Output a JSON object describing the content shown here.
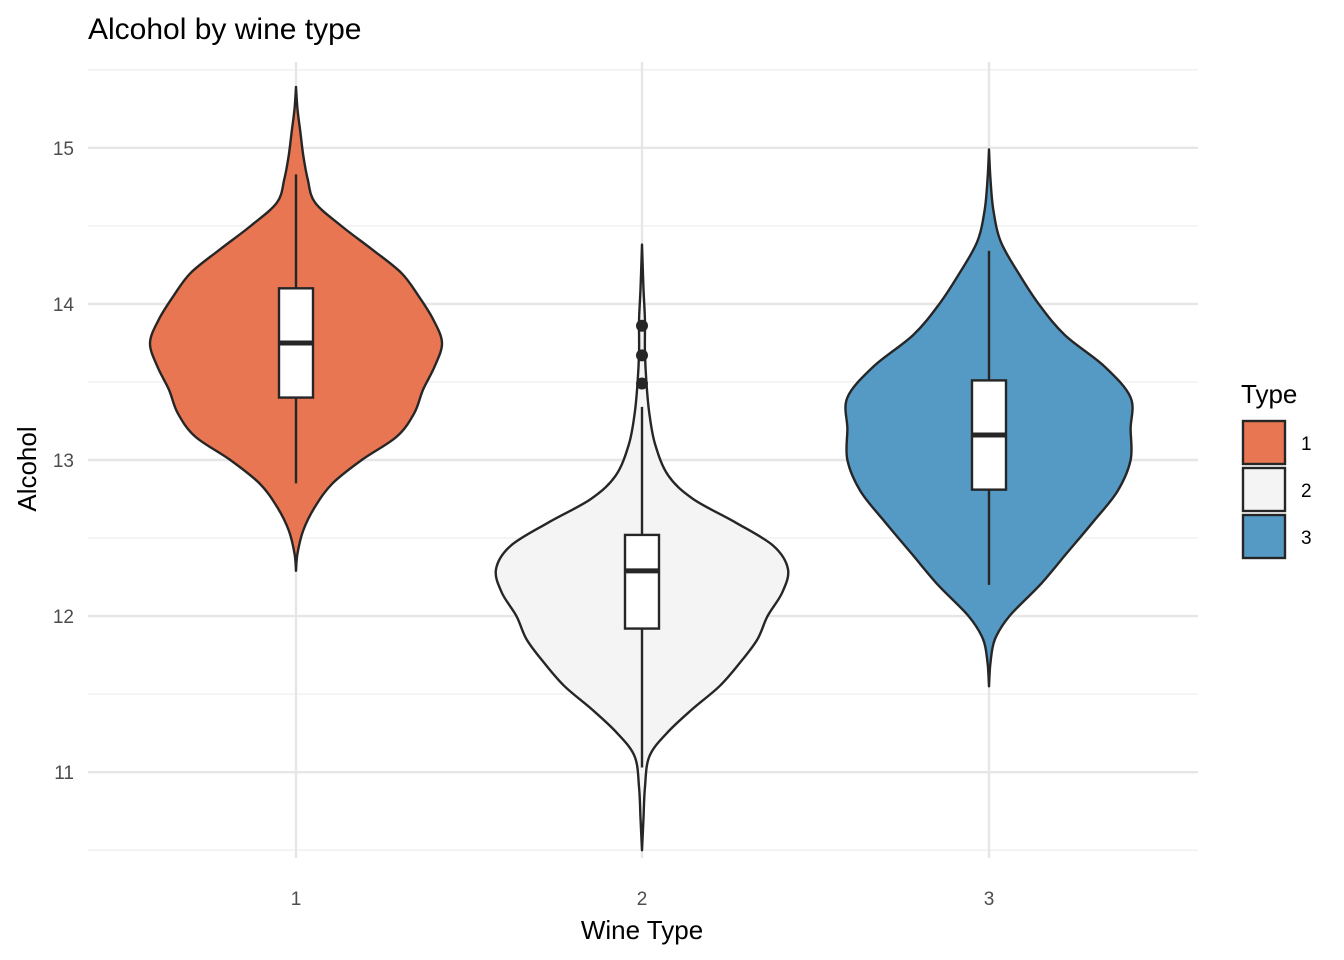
{
  "chart_data": {
    "type": "violin",
    "title": "Alcohol by wine type",
    "xlabel": "Wine Type",
    "ylabel": "Alcohol",
    "categories": [
      "1",
      "2",
      "3"
    ],
    "ylim": [
      10.45,
      15.55
    ],
    "y_ticks": [
      11,
      12,
      13,
      14,
      15
    ],
    "y_minor_ticks": [
      10.5,
      11.5,
      12.5,
      13.5,
      14.5,
      15.5
    ],
    "grid": true,
    "legend": {
      "title": "Type",
      "position": "right",
      "labels": [
        "1",
        "2",
        "3"
      ]
    },
    "series": [
      {
        "category": "1",
        "color": "#E87652",
        "box": {
          "whisker_low": 12.85,
          "q1": 13.4,
          "median": 13.75,
          "q3": 14.1,
          "whisker_high": 14.83
        },
        "outliers": [],
        "density": [
          [
            12.29,
            0.0
          ],
          [
            12.4,
            0.01
          ],
          [
            12.55,
            0.05
          ],
          [
            12.7,
            0.13
          ],
          [
            12.85,
            0.25
          ],
          [
            13.0,
            0.45
          ],
          [
            13.15,
            0.69
          ],
          [
            13.3,
            0.81
          ],
          [
            13.45,
            0.87
          ],
          [
            13.6,
            0.95
          ],
          [
            13.75,
            1.0
          ],
          [
            13.9,
            0.94
          ],
          [
            14.05,
            0.84
          ],
          [
            14.2,
            0.72
          ],
          [
            14.35,
            0.52
          ],
          [
            14.5,
            0.31
          ],
          [
            14.65,
            0.13
          ],
          [
            14.8,
            0.08
          ],
          [
            14.95,
            0.05
          ],
          [
            15.1,
            0.03
          ],
          [
            15.25,
            0.01
          ],
          [
            15.39,
            0.0
          ]
        ]
      },
      {
        "category": "2",
        "color": "#F4F4F4",
        "box": {
          "whisker_low": 11.03,
          "q1": 11.92,
          "median": 12.29,
          "q3": 12.52,
          "whisker_high": 13.34
        },
        "outliers": [
          13.49,
          13.67,
          13.86
        ],
        "density": [
          [
            10.5,
            0.0
          ],
          [
            10.7,
            0.01
          ],
          [
            10.9,
            0.02
          ],
          [
            11.1,
            0.05
          ],
          [
            11.25,
            0.17
          ],
          [
            11.4,
            0.34
          ],
          [
            11.55,
            0.53
          ],
          [
            11.7,
            0.67
          ],
          [
            11.85,
            0.79
          ],
          [
            12.0,
            0.86
          ],
          [
            12.15,
            0.96
          ],
          [
            12.3,
            1.0
          ],
          [
            12.45,
            0.9
          ],
          [
            12.6,
            0.64
          ],
          [
            12.75,
            0.35
          ],
          [
            12.9,
            0.18
          ],
          [
            13.1,
            0.09
          ],
          [
            13.3,
            0.05
          ],
          [
            13.5,
            0.03
          ],
          [
            13.7,
            0.02
          ],
          [
            13.9,
            0.02
          ],
          [
            14.1,
            0.01
          ],
          [
            14.38,
            0.0
          ]
        ]
      },
      {
        "category": "3",
        "color": "#5599C5",
        "box": {
          "whisker_low": 12.2,
          "q1": 12.81,
          "median": 13.16,
          "q3": 13.51,
          "whisker_high": 14.34
        },
        "outliers": [],
        "density": [
          [
            11.55,
            0.0
          ],
          [
            11.7,
            0.01
          ],
          [
            11.85,
            0.04
          ],
          [
            12.0,
            0.14
          ],
          [
            12.2,
            0.35
          ],
          [
            12.4,
            0.53
          ],
          [
            12.6,
            0.71
          ],
          [
            12.8,
            0.88
          ],
          [
            13.0,
            0.97
          ],
          [
            13.2,
            0.97
          ],
          [
            13.4,
            0.97
          ],
          [
            13.6,
            0.79
          ],
          [
            13.8,
            0.52
          ],
          [
            14.0,
            0.34
          ],
          [
            14.2,
            0.2
          ],
          [
            14.4,
            0.08
          ],
          [
            14.6,
            0.03
          ],
          [
            14.8,
            0.01
          ],
          [
            14.99,
            0.0
          ]
        ]
      }
    ]
  }
}
